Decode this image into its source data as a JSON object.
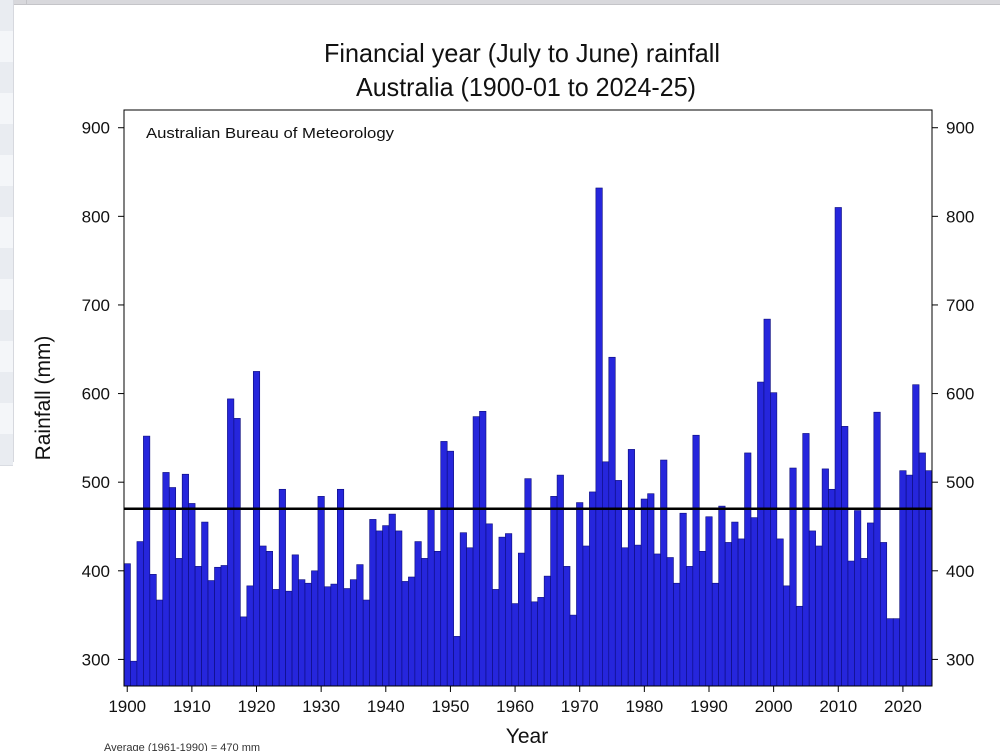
{
  "chart_data": {
    "type": "bar",
    "title": "Financial year (July to June) rainfall",
    "subtitle": "Australia (1900-01 to 2024-25)",
    "annotation": "Australian Bureau of Meteorology",
    "xlabel": "Year",
    "ylabel": "Rainfall (mm)",
    "footnote": "Average (1961-1990) = 470 mm",
    "ylim": [
      270,
      920
    ],
    "xlim": [
      1899.5,
      2024.5
    ],
    "x_ticks": [
      1900,
      1910,
      1920,
      1930,
      1940,
      1950,
      1960,
      1970,
      1980,
      1990,
      2000,
      2010,
      2020
    ],
    "y_ticks": [
      300,
      400,
      500,
      600,
      700,
      800,
      900
    ],
    "right_axis_ticks": true,
    "average_line": 470,
    "bar_color": "#2626dc",
    "bar_edge_color": "#0b0b7a",
    "line_color": "#000000",
    "grid": false,
    "legend": "none",
    "x": [
      1900,
      1901,
      1902,
      1903,
      1904,
      1905,
      1906,
      1907,
      1908,
      1909,
      1910,
      1911,
      1912,
      1913,
      1914,
      1915,
      1916,
      1917,
      1918,
      1919,
      1920,
      1921,
      1922,
      1923,
      1924,
      1925,
      1926,
      1927,
      1928,
      1929,
      1930,
      1931,
      1932,
      1933,
      1934,
      1935,
      1936,
      1937,
      1938,
      1939,
      1940,
      1941,
      1942,
      1943,
      1944,
      1945,
      1946,
      1947,
      1948,
      1949,
      1950,
      1951,
      1952,
      1953,
      1954,
      1955,
      1956,
      1957,
      1958,
      1959,
      1960,
      1961,
      1962,
      1963,
      1964,
      1965,
      1966,
      1967,
      1968,
      1969,
      1970,
      1971,
      1972,
      1973,
      1974,
      1975,
      1976,
      1977,
      1978,
      1979,
      1980,
      1981,
      1982,
      1983,
      1984,
      1985,
      1986,
      1987,
      1988,
      1989,
      1990,
      1991,
      1992,
      1993,
      1994,
      1995,
      1996,
      1997,
      1998,
      1999,
      2000,
      2001,
      2002,
      2003,
      2004,
      2005,
      2006,
      2007,
      2008,
      2009,
      2010,
      2011,
      2012,
      2013,
      2014,
      2015,
      2016,
      2017,
      2018,
      2019,
      2020,
      2021,
      2022,
      2023,
      2024
    ],
    "values": [
      408,
      298,
      433,
      552,
      396,
      367,
      511,
      494,
      414,
      509,
      476,
      405,
      455,
      389,
      404,
      406,
      594,
      572,
      348,
      383,
      625,
      428,
      422,
      379,
      492,
      377,
      418,
      390,
      386,
      400,
      484,
      382,
      385,
      492,
      380,
      390,
      407,
      367,
      458,
      445,
      451,
      464,
      445,
      388,
      393,
      433,
      414,
      470,
      422,
      546,
      535,
      326,
      443,
      426,
      574,
      580,
      453,
      379,
      438,
      442,
      363,
      420,
      504,
      365,
      370,
      394,
      484,
      508,
      405,
      350,
      477,
      428,
      489,
      832,
      523,
      641,
      502,
      426,
      537,
      429,
      481,
      487,
      419,
      525,
      415,
      386,
      465,
      405,
      553,
      422,
      461,
      386,
      473,
      432,
      455,
      436,
      533,
      460,
      613,
      684,
      601,
      436,
      383,
      516,
      360,
      555,
      445,
      428,
      515,
      492,
      810,
      563,
      411,
      468,
      414,
      454,
      579,
      432,
      346,
      346,
      513,
      508,
      610,
      533,
      513
    ]
  }
}
